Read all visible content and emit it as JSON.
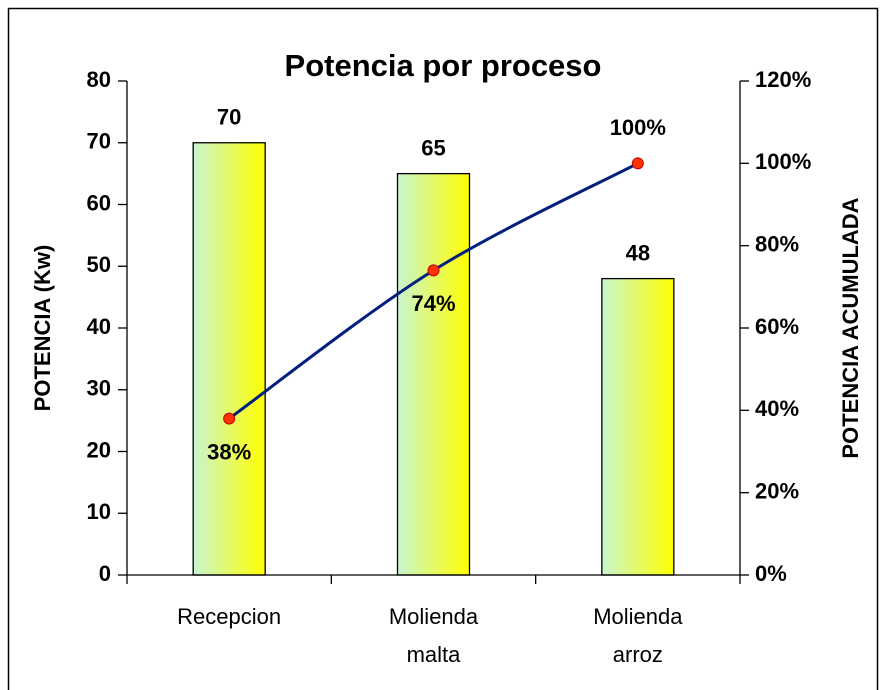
{
  "chart_data": {
    "type": "pareto",
    "title": "Potencia por proceso",
    "ylabel": "POTENCIA (Kw)",
    "y2label": "POTENCIA ACUMULADA",
    "categories": [
      "Recepcion",
      "Molienda malta",
      "Molienda arroz"
    ],
    "series": [
      {
        "type": "bar",
        "color": [
          "#c8f5d0",
          "#ffff00"
        ],
        "values": [
          70,
          65,
          48
        ]
      },
      {
        "type": "line",
        "axis": "y2",
        "color": "#001f7f",
        "marker_color": "#ff3300",
        "values": [
          38,
          74,
          100
        ],
        "value_labels": [
          "38%",
          "74%",
          "100%"
        ]
      }
    ],
    "ylim": [
      0,
      80
    ],
    "yticks": [
      0,
      10,
      20,
      30,
      40,
      50,
      60,
      70,
      80
    ],
    "y2lim": [
      0,
      120
    ],
    "y2ticks": [
      {
        "value": 0,
        "label": "0%"
      },
      {
        "value": 20,
        "label": "20%"
      },
      {
        "value": 40,
        "label": "40%"
      },
      {
        "value": 60,
        "label": "60%"
      },
      {
        "value": 80,
        "label": "80%"
      },
      {
        "value": 100,
        "label": "100%"
      },
      {
        "value": 120,
        "label": "120%"
      }
    ],
    "grid": false
  }
}
